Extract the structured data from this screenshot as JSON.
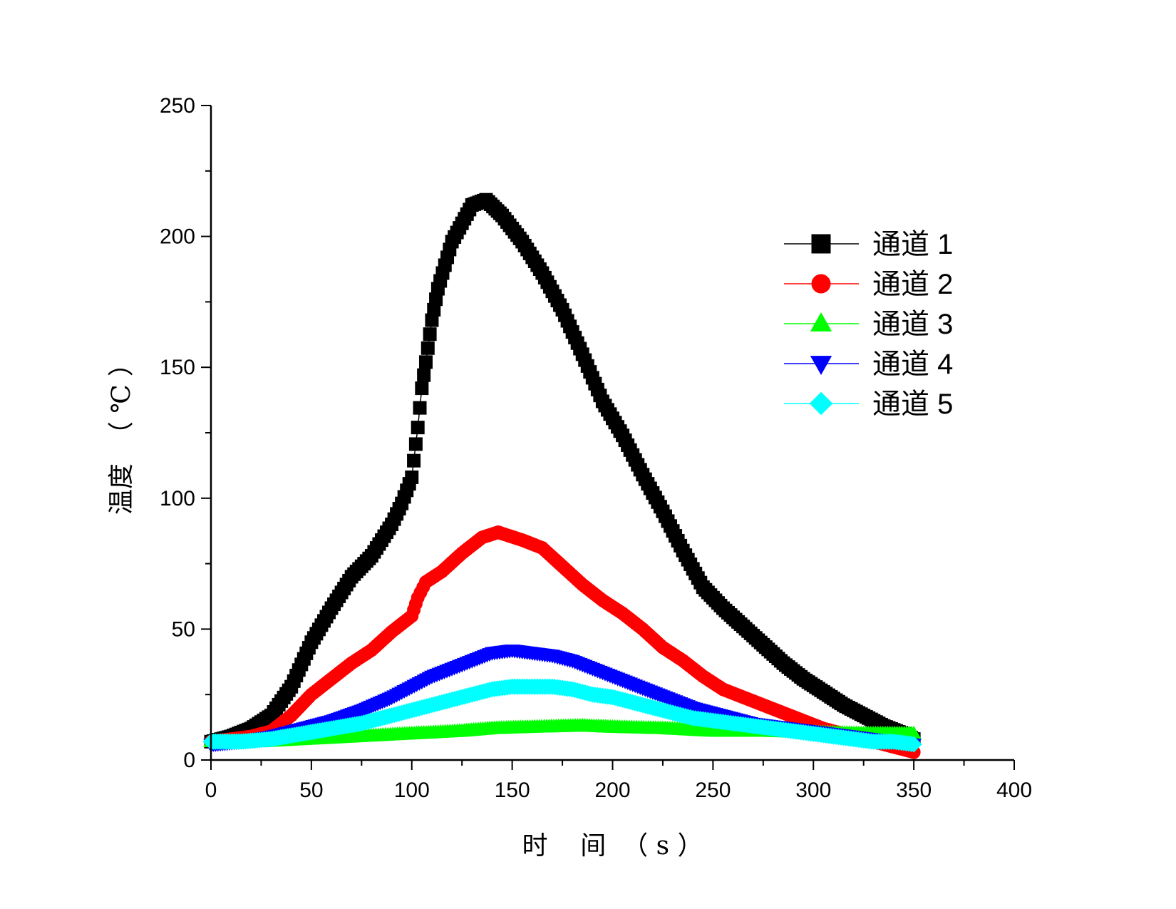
{
  "chart_data": {
    "type": "scatter",
    "title": "",
    "xlabel": "时    间  （ s ）",
    "ylabel": "温度  （ ℃ ）",
    "xlim": [
      0,
      400
    ],
    "ylim": [
      0,
      250
    ],
    "xticks": [
      0,
      50,
      100,
      150,
      200,
      250,
      300,
      350,
      400
    ],
    "yticks": [
      0,
      50,
      100,
      150,
      200,
      250
    ],
    "x_minor_step": 25,
    "y_minor_step": 25,
    "grid": false,
    "legend_position": "top-right",
    "series": [
      {
        "name": "通道 1",
        "color": "#000000",
        "marker": "square",
        "points": [
          [
            0,
            7
          ],
          [
            10,
            9
          ],
          [
            20,
            12
          ],
          [
            30,
            17
          ],
          [
            40,
            28
          ],
          [
            50,
            45
          ],
          [
            60,
            58
          ],
          [
            70,
            70
          ],
          [
            80,
            78
          ],
          [
            90,
            90
          ],
          [
            95,
            98
          ],
          [
            100,
            108
          ],
          [
            103,
            127
          ],
          [
            105,
            142
          ],
          [
            107,
            152
          ],
          [
            110,
            168
          ],
          [
            113,
            180
          ],
          [
            120,
            198
          ],
          [
            130,
            212
          ],
          [
            137,
            214
          ],
          [
            145,
            208
          ],
          [
            155,
            198
          ],
          [
            165,
            186
          ],
          [
            175,
            172
          ],
          [
            185,
            155
          ],
          [
            195,
            137
          ],
          [
            205,
            124
          ],
          [
            215,
            109
          ],
          [
            225,
            95
          ],
          [
            235,
            80
          ],
          [
            245,
            66
          ],
          [
            255,
            58
          ],
          [
            265,
            51
          ],
          [
            275,
            44
          ],
          [
            285,
            37
          ],
          [
            295,
            31
          ],
          [
            305,
            26
          ],
          [
            315,
            21
          ],
          [
            325,
            17
          ],
          [
            335,
            13
          ],
          [
            345,
            10
          ],
          [
            350,
            8
          ]
        ]
      },
      {
        "name": "通道 2",
        "color": "#ff0000",
        "marker": "circle",
        "points": [
          [
            0,
            7
          ],
          [
            10,
            8
          ],
          [
            20,
            9
          ],
          [
            30,
            11
          ],
          [
            40,
            17
          ],
          [
            50,
            25
          ],
          [
            60,
            31
          ],
          [
            70,
            37
          ],
          [
            80,
            42
          ],
          [
            90,
            49
          ],
          [
            100,
            55
          ],
          [
            103,
            62
          ],
          [
            107,
            68
          ],
          [
            115,
            72
          ],
          [
            125,
            79
          ],
          [
            135,
            85
          ],
          [
            143,
            87
          ],
          [
            155,
            84
          ],
          [
            165,
            81
          ],
          [
            175,
            74
          ],
          [
            185,
            67
          ],
          [
            195,
            61
          ],
          [
            205,
            56
          ],
          [
            215,
            50
          ],
          [
            225,
            43
          ],
          [
            235,
            38
          ],
          [
            245,
            32
          ],
          [
            255,
            27
          ],
          [
            265,
            24
          ],
          [
            275,
            21
          ],
          [
            285,
            18
          ],
          [
            295,
            15
          ],
          [
            305,
            12
          ],
          [
            315,
            10
          ],
          [
            325,
            8
          ],
          [
            335,
            6
          ],
          [
            345,
            4
          ],
          [
            350,
            3
          ]
        ]
      },
      {
        "name": "通道 3",
        "color": "#00ff00",
        "marker": "triangle-up",
        "points": [
          [
            0,
            7
          ],
          [
            25,
            7
          ],
          [
            50,
            8
          ],
          [
            75,
            9
          ],
          [
            100,
            10
          ],
          [
            125,
            11
          ],
          [
            140,
            12
          ],
          [
            160,
            12.5
          ],
          [
            185,
            13
          ],
          [
            200,
            12.5
          ],
          [
            225,
            12
          ],
          [
            250,
            11
          ],
          [
            275,
            11
          ],
          [
            300,
            10.5
          ],
          [
            325,
            10
          ],
          [
            350,
            10
          ]
        ]
      },
      {
        "name": "通道 4",
        "color": "#0000ff",
        "marker": "triangle-down",
        "points": [
          [
            0,
            6
          ],
          [
            15,
            7
          ],
          [
            30,
            9
          ],
          [
            45,
            12
          ],
          [
            60,
            15
          ],
          [
            75,
            19
          ],
          [
            90,
            24
          ],
          [
            100,
            28
          ],
          [
            110,
            32
          ],
          [
            120,
            35
          ],
          [
            130,
            38
          ],
          [
            140,
            41
          ],
          [
            150,
            42
          ],
          [
            160,
            41
          ],
          [
            170,
            40
          ],
          [
            180,
            38
          ],
          [
            190,
            35
          ],
          [
            200,
            32
          ],
          [
            210,
            29
          ],
          [
            220,
            26
          ],
          [
            230,
            23
          ],
          [
            240,
            20
          ],
          [
            250,
            18
          ],
          [
            260,
            16
          ],
          [
            270,
            14
          ],
          [
            280,
            13
          ],
          [
            290,
            12
          ],
          [
            300,
            11
          ],
          [
            310,
            10
          ],
          [
            320,
            9
          ],
          [
            330,
            8
          ],
          [
            340,
            7
          ],
          [
            350,
            6
          ]
        ]
      },
      {
        "name": "通道 5",
        "color": "#00ffff",
        "marker": "diamond",
        "points": [
          [
            0,
            7
          ],
          [
            15,
            7
          ],
          [
            30,
            8
          ],
          [
            45,
            10
          ],
          [
            60,
            12
          ],
          [
            75,
            14
          ],
          [
            90,
            17
          ],
          [
            100,
            19
          ],
          [
            110,
            21
          ],
          [
            120,
            23
          ],
          [
            130,
            25
          ],
          [
            140,
            27
          ],
          [
            150,
            28
          ],
          [
            160,
            28
          ],
          [
            170,
            28
          ],
          [
            180,
            27
          ],
          [
            190,
            25
          ],
          [
            200,
            24
          ],
          [
            210,
            22
          ],
          [
            220,
            20
          ],
          [
            230,
            18
          ],
          [
            240,
            16
          ],
          [
            250,
            15
          ],
          [
            260,
            14
          ],
          [
            270,
            13
          ],
          [
            280,
            12
          ],
          [
            290,
            11
          ],
          [
            300,
            10
          ],
          [
            310,
            9
          ],
          [
            320,
            8
          ],
          [
            330,
            7
          ],
          [
            340,
            7
          ],
          [
            350,
            6
          ]
        ]
      }
    ]
  }
}
